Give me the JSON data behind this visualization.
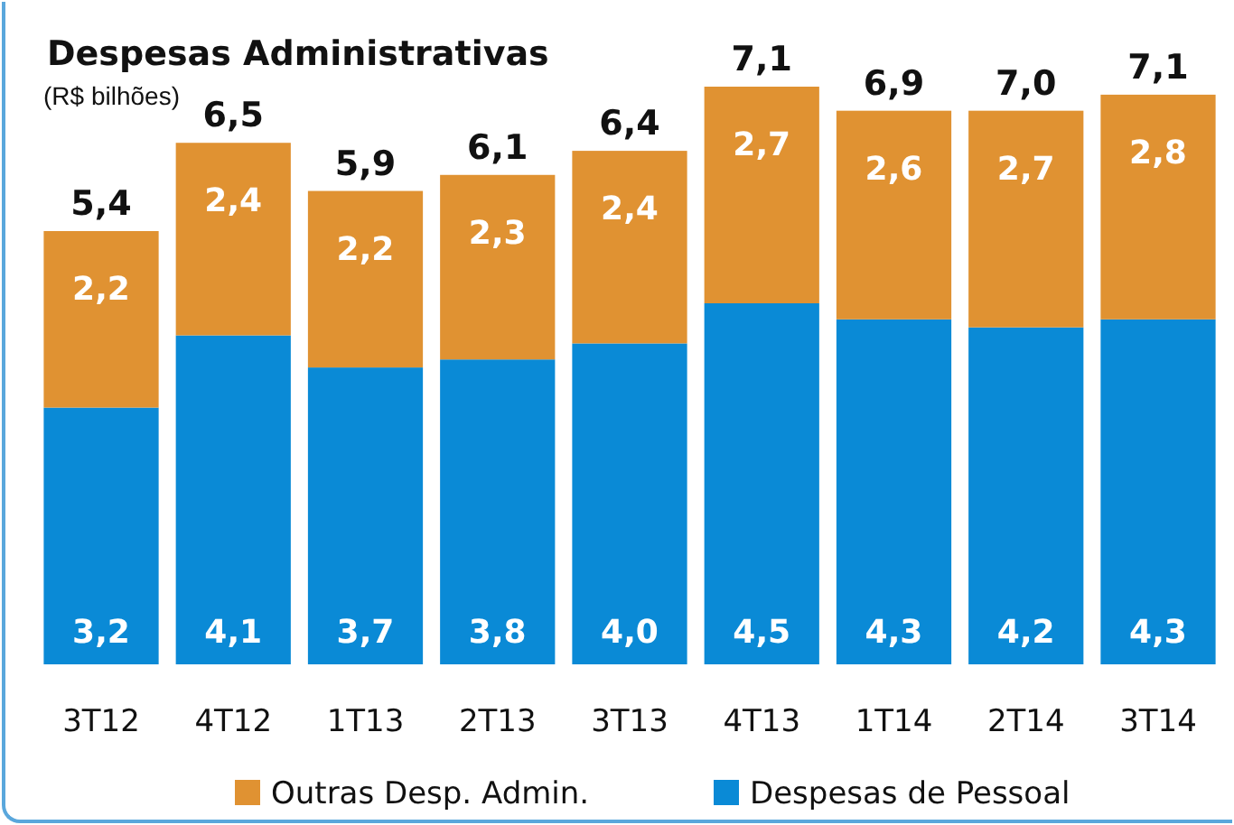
{
  "chart_data": {
    "type": "bar",
    "title": "Despesas Administrativas",
    "subtitle": "(R$ bilhões)",
    "stacked": true,
    "categories": [
      "3T12",
      "4T12",
      "1T13",
      "2T13",
      "3T13",
      "4T13",
      "1T14",
      "2T14",
      "3T14"
    ],
    "series": [
      {
        "name": "Despesas de Pessoal",
        "color": "#0a8ad6",
        "values": [
          3.2,
          4.1,
          3.7,
          3.8,
          4.0,
          4.5,
          4.3,
          4.2,
          4.3
        ],
        "value_labels": [
          "3,2",
          "4,1",
          "3,7",
          "3,8",
          "4,0",
          "4,5",
          "4,3",
          "4,2",
          "4,3"
        ]
      },
      {
        "name": "Outras Desp. Admin.",
        "color": "#e09232",
        "values": [
          2.2,
          2.4,
          2.2,
          2.3,
          2.4,
          2.7,
          2.6,
          2.7,
          2.8
        ],
        "value_labels": [
          "2,2",
          "2,4",
          "2,2",
          "2,3",
          "2,4",
          "2,7",
          "2,6",
          "2,7",
          "2,8"
        ]
      }
    ],
    "totals": [
      "5,4",
      "6,5",
      "5,9",
      "6,1",
      "6,4",
      "7,1",
      "6,9",
      "7,0",
      "7,1"
    ],
    "legend": "bottom"
  }
}
